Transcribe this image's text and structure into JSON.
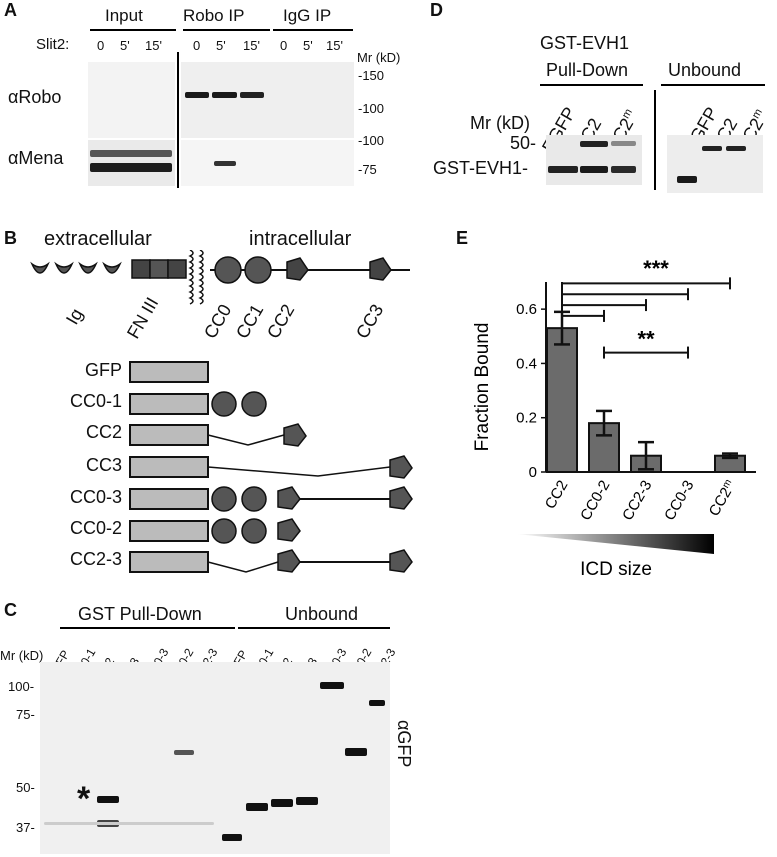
{
  "panel_a": {
    "label": "A",
    "groups": [
      "Input",
      "Robo IP",
      "IgG IP"
    ],
    "slit_label": "Slit2:",
    "timepoints": [
      "0",
      "5'",
      "15'"
    ],
    "mr_header": "Mr (kD)",
    "mr_markers": [
      "-150",
      "-100",
      "-100",
      "-75"
    ],
    "rows": [
      "αRobo",
      "αMena"
    ]
  },
  "panel_b": {
    "label": "B",
    "extracellular": "extracellular",
    "intracellular": "intracellular",
    "domains": [
      "Ig",
      "FN III",
      "CC0",
      "CC1",
      "CC2",
      "CC3"
    ],
    "constructs": [
      "GFP",
      "CC0-1",
      "CC2",
      "CC3",
      "CC0-3",
      "CC0-2",
      "CC2-3"
    ]
  },
  "panel_c": {
    "label": "C",
    "group_pulldown": "GST Pull-Down",
    "group_unbound": "Unbound",
    "mr_header": "Mr (kD)",
    "lanes": [
      "EGFP",
      "CC0-1",
      "CC2",
      "CC3",
      "CC0-3",
      "CC0-2",
      "CC2-3"
    ],
    "mr_markers": [
      "100-",
      "75-",
      "50-",
      "37-"
    ],
    "asterisk": "*",
    "antibody": "αGFP"
  },
  "panel_d": {
    "label": "D",
    "title_line1": "GST-EVH1",
    "title_line2": "Pull-Down",
    "unbound": "Unbound",
    "mr_header": "Mr (kD)",
    "marker_50": "50-",
    "gst_label": "GST-EVH1-",
    "lanes_text": [
      "EGFP",
      "CC2",
      "CC2"
    ],
    "superscript": "m"
  },
  "panel_e": {
    "label": "E",
    "significance_top": "***",
    "significance_mid": "**",
    "xlabel_bar": "ICD size",
    "superscript": "m"
  },
  "chart_data": {
    "type": "bar",
    "categories": [
      "CC2",
      "CC0-2",
      "CC2-3",
      "CC0-3",
      "CC2m"
    ],
    "values": [
      0.53,
      0.18,
      0.06,
      0.0,
      0.06
    ],
    "errors": [
      0.06,
      0.045,
      0.05,
      0.0,
      0.008
    ],
    "ylabel": "Fraction Bound",
    "yticks": [
      "0",
      "0.2",
      "0.4",
      "0.6"
    ],
    "ylim": [
      0,
      0.7
    ],
    "bar_color": "#6b6b6b"
  }
}
